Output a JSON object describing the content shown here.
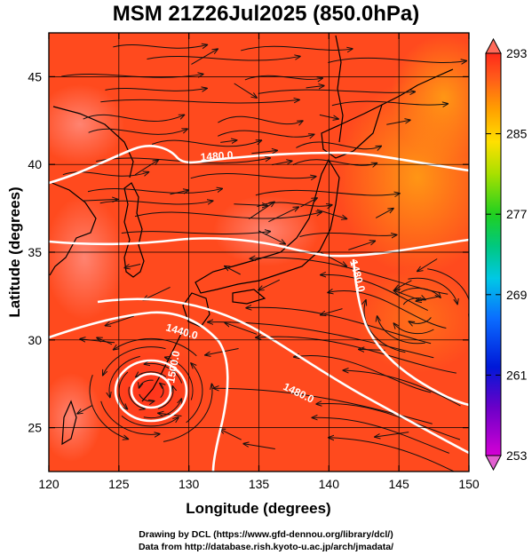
{
  "title": "MSM 21Z26Jul2025 (850.0hPa)",
  "x_axis": {
    "label": "Longitude (degrees)",
    "range": [
      120,
      150
    ],
    "ticks": [
      120,
      125,
      130,
      135,
      140,
      145,
      150
    ]
  },
  "y_axis": {
    "label": "Latitude  (degrees)",
    "range": [
      22.5,
      47.5
    ],
    "ticks": [
      25,
      30,
      35,
      40,
      45
    ]
  },
  "colorbar": {
    "range": [
      253,
      293
    ],
    "ticks": [
      253,
      261,
      269,
      277,
      285,
      293
    ],
    "colormap": "rainbow (magenta → blue → cyan → green → yellow → orange → red)"
  },
  "field": {
    "shaded": "temperature",
    "dominant_color": "#ff4a1e",
    "warm_spot_color": "#ff7a6a",
    "cool_region_color": "#ff8f1a"
  },
  "contours": {
    "color": "#ffffff",
    "labels": [
      "1480.0",
      "1480.0",
      "1440.0",
      "1480.0",
      "1500.0"
    ]
  },
  "streamlines": {
    "color": "#111111"
  },
  "coastline": {
    "color": "#000000"
  },
  "credits": {
    "line1": "Drawing by DCL (https://www.gfd-dennou.org/library/dcl/)",
    "line2": "Data from http://database.rish.kyoto-u.ac.jp/arch/jmadata/"
  },
  "chart_data": {
    "type": "heatmap",
    "title": "MSM 21Z26Jul2025 (850.0hPa)",
    "xlabel": "Longitude (degrees)",
    "ylabel": "Latitude  (degrees)",
    "xlim": [
      120,
      150
    ],
    "ylim": [
      22.5,
      47.5
    ],
    "color_range": [
      253,
      293
    ],
    "contour_levels": [
      1440,
      1480,
      1500
    ],
    "grid": true,
    "legend": "right colorbar"
  }
}
